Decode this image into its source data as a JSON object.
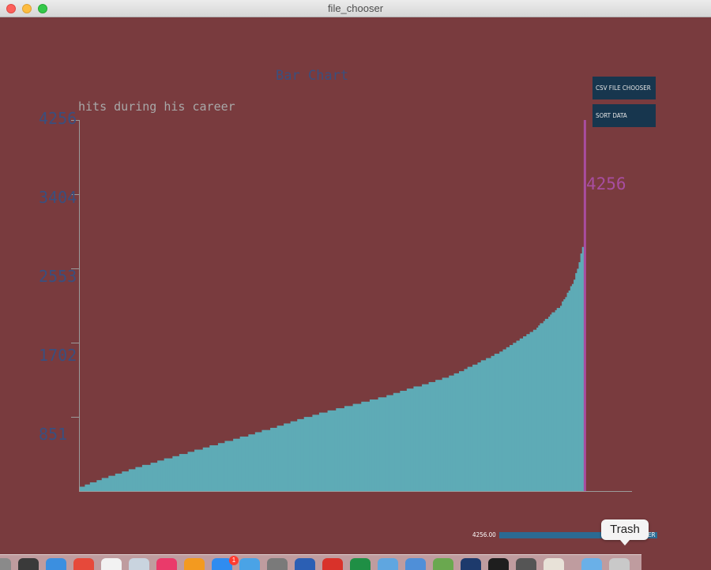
{
  "window": {
    "title": "file_chooser"
  },
  "buttons": {
    "csv_file_chooser": "CSV FILE CHOOSER",
    "sort_data": "SORT DATA"
  },
  "slider": {
    "value_label": "4256.00",
    "tail_label": "ER"
  },
  "tooltip": {
    "text": "Trash"
  },
  "dock": {
    "badge": "1",
    "icons": [
      {
        "name": "launchpad-icon",
        "color": "#8a8a8a"
      },
      {
        "name": "dashboard-icon",
        "color": "#3a3a3a"
      },
      {
        "name": "safari-icon",
        "color": "#3b8fe0"
      },
      {
        "name": "chrome-icon",
        "color": "#e6493a"
      },
      {
        "name": "calendar-icon",
        "color": "#f2f2f2"
      },
      {
        "name": "preview-icon",
        "color": "#c9d4df"
      },
      {
        "name": "itunes-icon",
        "color": "#ea3a6a"
      },
      {
        "name": "ibooks-icon",
        "color": "#f39a1f"
      },
      {
        "name": "app-store-icon",
        "color": "#2f8cf0"
      },
      {
        "name": "xcode-icon",
        "color": "#4aa3e6"
      },
      {
        "name": "system-preferences-icon",
        "color": "#7a7a7a"
      },
      {
        "name": "word-icon",
        "color": "#2b5fb4"
      },
      {
        "name": "papers-icon",
        "color": "#d9322a"
      },
      {
        "name": "excel-icon",
        "color": "#1f8f45"
      },
      {
        "name": "network-icon",
        "color": "#5fa6e0"
      },
      {
        "name": "finder-icon",
        "color": "#4f8fd8"
      },
      {
        "name": "sourcetree-icon",
        "color": "#6aa84f"
      },
      {
        "name": "r-studio-icon",
        "color": "#1d3a6c"
      },
      {
        "name": "terminal-icon",
        "color": "#1e1e1e"
      },
      {
        "name": "sublime-icon",
        "color": "#555555"
      },
      {
        "name": "processing-icon",
        "color": "#e8e2d8"
      },
      {
        "name": "downloads-folder-icon",
        "color": "#6ab0e8"
      },
      {
        "name": "trash-icon",
        "color": "#c9c9c9"
      }
    ]
  },
  "colors": {
    "background": "#793b3e",
    "bar": "#5eabb6",
    "highlight": "#a84da0",
    "axis_text": "#3a4f7e",
    "button_bg": "#17364e"
  },
  "chart_data": {
    "type": "bar",
    "title": "Bar Chart",
    "subtitle": "hits during his career",
    "ylabel": "",
    "xlabel": "",
    "ylim": [
      0,
      4256
    ],
    "y_ticks": [
      "4256",
      "3404",
      "2553",
      "1702",
      "851"
    ],
    "sorted": "ascending",
    "bar_count": 300,
    "max_value": 4256,
    "max_label": "4256",
    "profile": [
      [
        0,
        40
      ],
      [
        10,
        120
      ],
      [
        30,
        250
      ],
      [
        60,
        420
      ],
      [
        100,
        640
      ],
      [
        140,
        880
      ],
      [
        180,
        1080
      ],
      [
        220,
        1320
      ],
      [
        250,
        1600
      ],
      [
        270,
        1860
      ],
      [
        285,
        2130
      ],
      [
        292,
        2380
      ],
      [
        295,
        2550
      ],
      [
        297,
        2720
      ],
      [
        298,
        2800
      ],
      [
        299,
        4256
      ]
    ]
  }
}
